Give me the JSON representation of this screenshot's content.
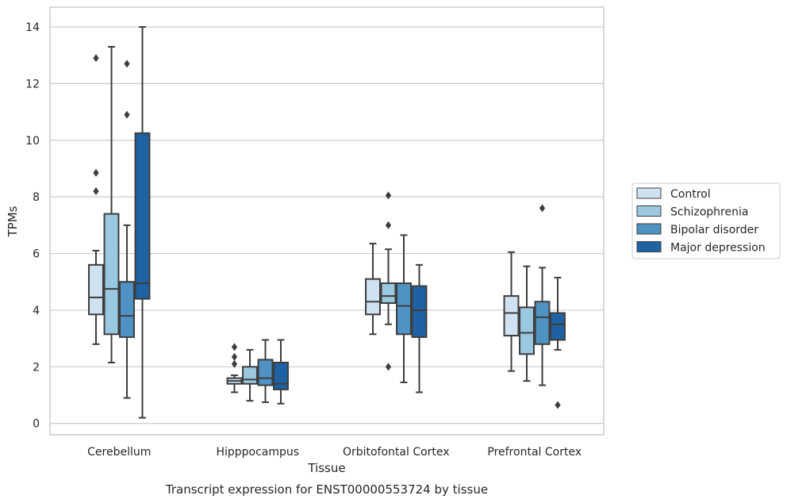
{
  "caption": "Transcript expression for ENST00000553724 by tissue",
  "chart_data": {
    "type": "boxplot",
    "xlabel": "Tissue",
    "ylabel": "TPMs",
    "ylim": [
      -0.4,
      14.7
    ],
    "yticks": [
      0,
      2,
      4,
      6,
      8,
      10,
      12,
      14
    ],
    "grid": "horizontal",
    "legend_position": "right",
    "categories": [
      "Cerebellum",
      "Hipppocampus",
      "Orbitofontal Cortex",
      "Prefrontal Cortex"
    ],
    "series": [
      {
        "name": "Control",
        "color": "#d0e1f2",
        "boxes": [
          {
            "whislo": 2.8,
            "q1": 3.85,
            "med": 4.45,
            "q3": 5.6,
            "whishi": 6.1,
            "fliers": [
              12.9,
              8.85,
              8.2
            ]
          },
          {
            "whislo": 1.1,
            "q1": 1.4,
            "med": 1.5,
            "q3": 1.6,
            "whishi": 1.7,
            "fliers": [
              2.7,
              2.35,
              2.1
            ]
          },
          {
            "whislo": 3.15,
            "q1": 3.85,
            "med": 4.3,
            "q3": 5.1,
            "whishi": 6.35,
            "fliers": []
          },
          {
            "whislo": 1.85,
            "q1": 3.1,
            "med": 3.9,
            "q3": 4.5,
            "whishi": 6.05,
            "fliers": []
          }
        ]
      },
      {
        "name": "Schizophrenia",
        "color": "#9ac8e0",
        "boxes": [
          {
            "whislo": 2.15,
            "q1": 3.15,
            "med": 4.75,
            "q3": 7.4,
            "whishi": 13.3,
            "fliers": []
          },
          {
            "whislo": 0.8,
            "q1": 1.4,
            "med": 1.55,
            "q3": 2.0,
            "whishi": 2.6,
            "fliers": []
          },
          {
            "whislo": 3.5,
            "q1": 4.25,
            "med": 4.5,
            "q3": 4.95,
            "whishi": 6.15,
            "fliers": [
              8.05,
              7.0,
              2.0
            ]
          },
          {
            "whislo": 1.5,
            "q1": 2.45,
            "med": 3.2,
            "q3": 4.1,
            "whishi": 5.55,
            "fliers": []
          }
        ]
      },
      {
        "name": "Bipolar disorder",
        "color": "#4f93c4",
        "boxes": [
          {
            "whislo": 0.9,
            "q1": 3.05,
            "med": 3.8,
            "q3": 5.0,
            "whishi": 7.0,
            "fliers": [
              12.7,
              10.9
            ]
          },
          {
            "whislo": 0.75,
            "q1": 1.35,
            "med": 1.6,
            "q3": 2.25,
            "whishi": 2.95,
            "fliers": []
          },
          {
            "whislo": 1.45,
            "q1": 3.15,
            "med": 4.15,
            "q3": 4.95,
            "whishi": 6.65,
            "fliers": []
          },
          {
            "whislo": 1.35,
            "q1": 2.8,
            "med": 3.75,
            "q3": 4.3,
            "whishi": 5.5,
            "fliers": [
              7.6
            ]
          }
        ]
      },
      {
        "name": "Major depression",
        "color": "#1f62a4",
        "boxes": [
          {
            "whislo": 0.2,
            "q1": 4.4,
            "med": 4.95,
            "q3": 10.25,
            "whishi": 14.0,
            "fliers": []
          },
          {
            "whislo": 0.7,
            "q1": 1.2,
            "med": 1.4,
            "q3": 2.15,
            "whishi": 2.95,
            "fliers": []
          },
          {
            "whislo": 1.1,
            "q1": 3.05,
            "med": 4.0,
            "q3": 4.85,
            "whishi": 5.6,
            "fliers": []
          },
          {
            "whislo": 2.6,
            "q1": 2.95,
            "med": 3.5,
            "q3": 3.9,
            "whishi": 5.15,
            "fliers": [
              0.65
            ]
          }
        ]
      }
    ]
  }
}
